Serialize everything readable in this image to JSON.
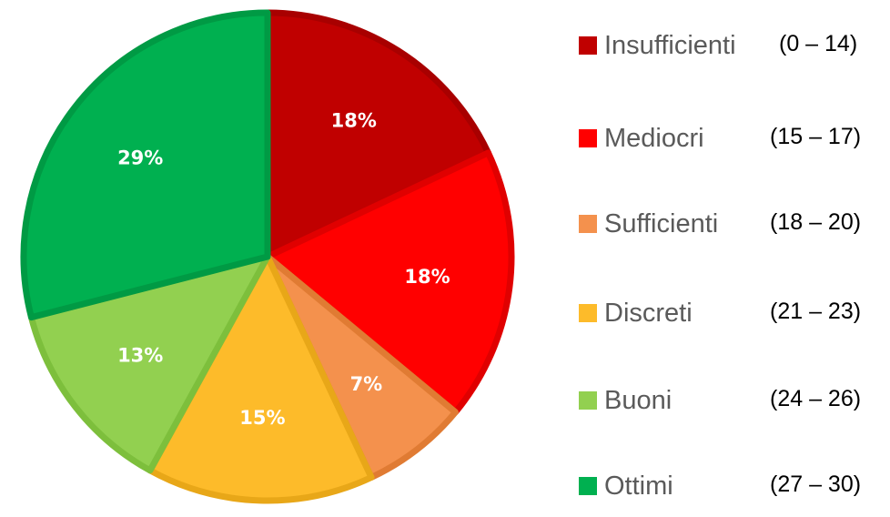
{
  "chart_data": {
    "type": "pie",
    "slices": [
      {
        "label": "Insufficienti",
        "range": "(0 – 14)",
        "value": 18,
        "display": "18%",
        "color": "#c00000",
        "border": "#a80000"
      },
      {
        "label": "Mediocri",
        "range": "(15 – 17)",
        "value": 18,
        "display": "18%",
        "color": "#ff0000",
        "border": "#e00000"
      },
      {
        "label": "Sufficienti",
        "range": "(18 – 20)",
        "value": 7,
        "display": "7%",
        "color": "#f4914d",
        "border": "#e07b33"
      },
      {
        "label": "Discreti",
        "range": "(21 – 23)",
        "value": 15,
        "display": "15%",
        "color": "#fdbb2a",
        "border": "#e8a718"
      },
      {
        "label": "Buoni",
        "range": "(24 – 26)",
        "value": 13,
        "display": "13%",
        "color": "#92d050",
        "border": "#7dbf3c"
      },
      {
        "label": "Ottimi",
        "range": "(27 – 30)",
        "value": 29,
        "display": "29%",
        "color": "#00b050",
        "border": "#009a44"
      }
    ],
    "start_angle": "12 o'clock",
    "direction": "clockwise",
    "legend_position": "right"
  }
}
